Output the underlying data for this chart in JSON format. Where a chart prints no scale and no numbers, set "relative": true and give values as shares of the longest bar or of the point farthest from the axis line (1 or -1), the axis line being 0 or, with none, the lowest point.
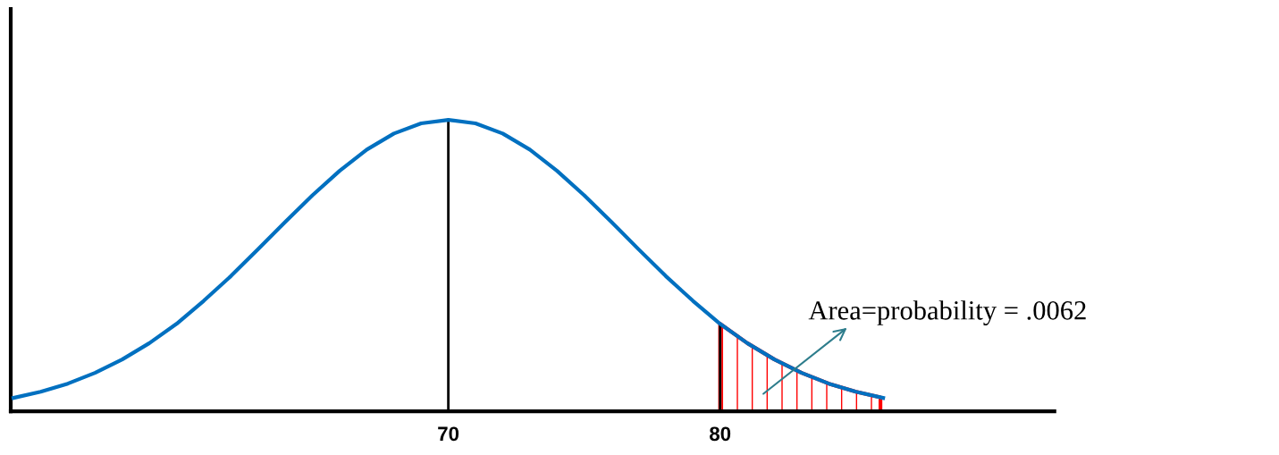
{
  "chart_data": {
    "type": "line",
    "relative": true,
    "tick_labels": "x",
    "grid": false,
    "legend": false,
    "marker": "none",
    "line_style": "solid",
    "xlim": [
      53.9,
      92.3
    ],
    "xticks": [
      70,
      80
    ],
    "series": [
      {
        "color": "#0070c0",
        "x": [
          54,
          55,
          56,
          57,
          58,
          59,
          60,
          61,
          62,
          63,
          64,
          65,
          66,
          67,
          68,
          69,
          70,
          71,
          72,
          73,
          74,
          75,
          76,
          77,
          78,
          79,
          80,
          81,
          82,
          83,
          84,
          85,
          86
        ],
        "values": [
          0.046,
          0.067,
          0.095,
          0.132,
          0.178,
          0.234,
          0.3,
          0.379,
          0.464,
          0.556,
          0.65,
          0.741,
          0.825,
          0.898,
          0.953,
          0.988,
          1,
          0.988,
          0.953,
          0.898,
          0.825,
          0.741,
          0.65,
          0.556,
          0.464,
          0.379,
          0.3,
          0.234,
          0.178,
          0.132,
          0.095,
          0.067,
          0.046
        ]
      },
      {
        "type": "area",
        "color": "#ff0000",
        "x": [
          80,
          81,
          82,
          83,
          84,
          85,
          85.9
        ],
        "values": [
          0.3,
          0.234,
          0.178,
          0.132,
          0.095,
          0.067,
          0.048
        ]
      }
    ],
    "ref_lines": [
      {
        "axis": "x",
        "value": 70,
        "color": "#000000",
        "line_style": "solid"
      },
      {
        "axis": "x",
        "value": 80,
        "color": "#000000",
        "line_style": "solid"
      }
    ],
    "annotations": [
      "Area=probability = .0062"
    ]
  }
}
